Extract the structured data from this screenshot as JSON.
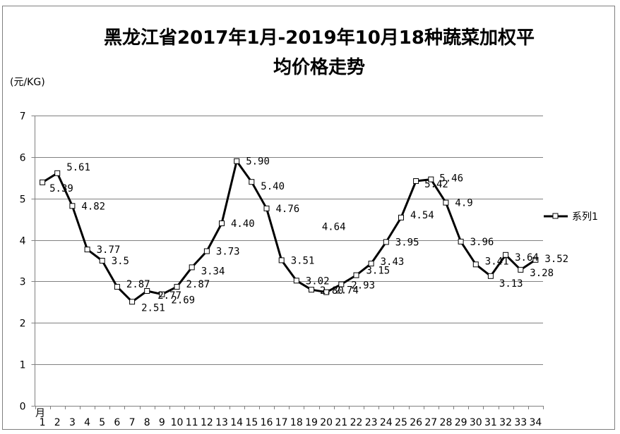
{
  "chart_data": {
    "type": "line",
    "title_line1": "黑龙江省2017年1月-2019年10月18种蔬菜加权平",
    "title_line2": "均价格走势",
    "ylabel": "(元/KG)",
    "x_axis_unit": "月",
    "ylim": [
      0,
      7
    ],
    "yticks": [
      "0",
      "1",
      "2",
      "3",
      "4",
      "5",
      "6",
      "7"
    ],
    "grid": true,
    "legend_position": "right",
    "categories": [
      "1",
      "2",
      "3",
      "4",
      "5",
      "6",
      "7",
      "8",
      "9",
      "10",
      "11",
      "12",
      "13",
      "14",
      "15",
      "16",
      "17",
      "18",
      "19",
      "20",
      "21",
      "22",
      "23",
      "24",
      "25",
      "26",
      "27",
      "28",
      "29",
      "30",
      "31",
      "32",
      "33",
      "34"
    ],
    "series": [
      {
        "name": "系列1",
        "values": [
          5.39,
          5.61,
          4.82,
          3.77,
          3.5,
          2.87,
          2.51,
          2.77,
          2.69,
          2.87,
          3.34,
          3.73,
          4.4,
          5.9,
          5.4,
          4.76,
          3.51,
          3.02,
          2.8,
          2.74,
          2.93,
          3.15,
          3.43,
          3.95,
          4.54,
          5.42,
          5.46,
          4.9,
          3.96,
          3.41,
          3.13,
          3.64,
          3.28,
          3.52
        ],
        "labels": [
          "5.39",
          "5.61",
          "4.82",
          "3.77",
          "3.5",
          "2.87",
          "2.51",
          "2.77",
          "2.69",
          "2.87",
          "3.34",
          "3.73",
          "4.40",
          "5.90",
          "5.40",
          "4.76",
          "3.51",
          "3.02",
          "2.80",
          "2.74",
          "2.93",
          "3.15",
          "3.43",
          "3.95",
          "4.54",
          "5.42",
          "5.46",
          "4.9",
          "3.96",
          "3.41",
          "3.13",
          "3.64",
          "3.28",
          "3.52"
        ]
      }
    ],
    "annotations": [
      {
        "text": "4.64",
        "x": 20.5,
        "y": 4.32
      }
    ]
  }
}
